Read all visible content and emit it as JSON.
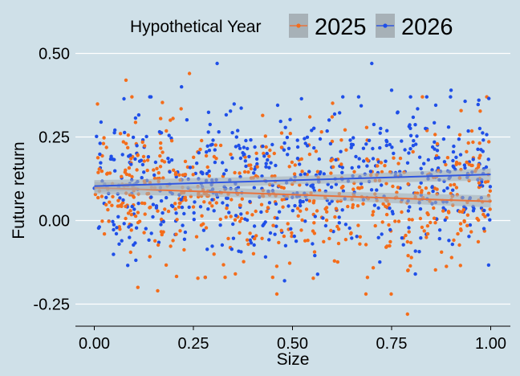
{
  "colors": {
    "background": "#cfe0e8",
    "series_2025": "#f46d1b",
    "series_2026": "#1f4fe8",
    "trend_2025": "#e8743d",
    "trend_2026": "#3158e0",
    "band": "#a7b1b7",
    "grid": "#ffffff"
  },
  "chart_data": {
    "type": "scatter",
    "title": "",
    "xlabel": "Size",
    "ylabel": "Future return",
    "xlim": [
      -0.05,
      1.05
    ],
    "ylim": [
      -0.31,
      0.53
    ],
    "x_ticks": [
      0,
      0.25,
      0.5,
      0.75,
      1
    ],
    "x_tick_labels": [
      "0.00",
      "0.25",
      "0.50",
      "0.75",
      "1.00"
    ],
    "y_ticks": [
      -0.25,
      0,
      0.25,
      0.5
    ],
    "y_tick_labels": [
      "-0.25",
      "0.00",
      "0.25",
      "0.50"
    ],
    "grid": "horizontal",
    "legend": {
      "title": "Hypothetical Year",
      "position": "top"
    },
    "points_per_series": 600,
    "series": [
      {
        "name": "2025",
        "color": "#f46d1b",
        "trend": {
          "x": [
            0,
            1
          ],
          "y": [
            0.098,
            0.057
          ]
        },
        "band_halfwidth": 0.012,
        "spread": 0.105,
        "sample_points": [
          [
            0.08,
            0.42
          ],
          [
            0.24,
            0.44
          ],
          [
            0.16,
            -0.21
          ],
          [
            0.11,
            -0.2
          ],
          [
            0.79,
            -0.28
          ],
          [
            0.99,
            0.37
          ],
          [
            0.45,
            -0.17
          ],
          [
            0.28,
            -0.17
          ],
          [
            0.33,
            -0.17
          ],
          [
            0.6,
            0.31
          ]
        ]
      },
      {
        "name": "2026",
        "color": "#1f4fe8",
        "trend": {
          "x": [
            0,
            1
          ],
          "y": [
            0.103,
            0.138
          ]
        },
        "band_halfwidth": 0.012,
        "spread": 0.105,
        "sample_points": [
          [
            0.31,
            0.47
          ],
          [
            0.7,
            0.47
          ],
          [
            0.22,
            0.4
          ],
          [
            0.9,
            0.39
          ],
          [
            0.75,
            0.39
          ],
          [
            0.81,
            -0.16
          ],
          [
            0.48,
            -0.18
          ],
          [
            0.28,
            -0.17
          ],
          [
            0.97,
            0.36
          ],
          [
            0.14,
            0.37
          ]
        ]
      }
    ]
  }
}
